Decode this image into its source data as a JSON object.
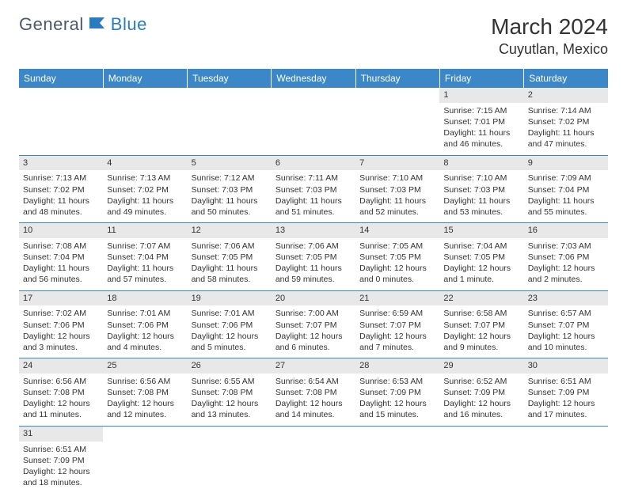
{
  "logo": {
    "part1": "General",
    "part2": "Blue"
  },
  "title": "March 2024",
  "location": "Cuyutlan, Mexico",
  "colors": {
    "header_bg": "#3b87c8",
    "header_text": "#ffffff",
    "row_border": "#3b87c8",
    "daynum_bg": "#e8e8e8",
    "text": "#333333",
    "logo_gray": "#4a5a6a",
    "logo_blue": "#2a7bbf"
  },
  "day_headers": [
    "Sunday",
    "Monday",
    "Tuesday",
    "Wednesday",
    "Thursday",
    "Friday",
    "Saturday"
  ],
  "weeks": [
    [
      null,
      null,
      null,
      null,
      null,
      {
        "n": "1",
        "sr": "Sunrise: 7:15 AM",
        "ss": "Sunset: 7:01 PM",
        "dl": "Daylight: 11 hours and 46 minutes."
      },
      {
        "n": "2",
        "sr": "Sunrise: 7:14 AM",
        "ss": "Sunset: 7:02 PM",
        "dl": "Daylight: 11 hours and 47 minutes."
      }
    ],
    [
      {
        "n": "3",
        "sr": "Sunrise: 7:13 AM",
        "ss": "Sunset: 7:02 PM",
        "dl": "Daylight: 11 hours and 48 minutes."
      },
      {
        "n": "4",
        "sr": "Sunrise: 7:13 AM",
        "ss": "Sunset: 7:02 PM",
        "dl": "Daylight: 11 hours and 49 minutes."
      },
      {
        "n": "5",
        "sr": "Sunrise: 7:12 AM",
        "ss": "Sunset: 7:03 PM",
        "dl": "Daylight: 11 hours and 50 minutes."
      },
      {
        "n": "6",
        "sr": "Sunrise: 7:11 AM",
        "ss": "Sunset: 7:03 PM",
        "dl": "Daylight: 11 hours and 51 minutes."
      },
      {
        "n": "7",
        "sr": "Sunrise: 7:10 AM",
        "ss": "Sunset: 7:03 PM",
        "dl": "Daylight: 11 hours and 52 minutes."
      },
      {
        "n": "8",
        "sr": "Sunrise: 7:10 AM",
        "ss": "Sunset: 7:03 PM",
        "dl": "Daylight: 11 hours and 53 minutes."
      },
      {
        "n": "9",
        "sr": "Sunrise: 7:09 AM",
        "ss": "Sunset: 7:04 PM",
        "dl": "Daylight: 11 hours and 55 minutes."
      }
    ],
    [
      {
        "n": "10",
        "sr": "Sunrise: 7:08 AM",
        "ss": "Sunset: 7:04 PM",
        "dl": "Daylight: 11 hours and 56 minutes."
      },
      {
        "n": "11",
        "sr": "Sunrise: 7:07 AM",
        "ss": "Sunset: 7:04 PM",
        "dl": "Daylight: 11 hours and 57 minutes."
      },
      {
        "n": "12",
        "sr": "Sunrise: 7:06 AM",
        "ss": "Sunset: 7:05 PM",
        "dl": "Daylight: 11 hours and 58 minutes."
      },
      {
        "n": "13",
        "sr": "Sunrise: 7:06 AM",
        "ss": "Sunset: 7:05 PM",
        "dl": "Daylight: 11 hours and 59 minutes."
      },
      {
        "n": "14",
        "sr": "Sunrise: 7:05 AM",
        "ss": "Sunset: 7:05 PM",
        "dl": "Daylight: 12 hours and 0 minutes."
      },
      {
        "n": "15",
        "sr": "Sunrise: 7:04 AM",
        "ss": "Sunset: 7:05 PM",
        "dl": "Daylight: 12 hours and 1 minute."
      },
      {
        "n": "16",
        "sr": "Sunrise: 7:03 AM",
        "ss": "Sunset: 7:06 PM",
        "dl": "Daylight: 12 hours and 2 minutes."
      }
    ],
    [
      {
        "n": "17",
        "sr": "Sunrise: 7:02 AM",
        "ss": "Sunset: 7:06 PM",
        "dl": "Daylight: 12 hours and 3 minutes."
      },
      {
        "n": "18",
        "sr": "Sunrise: 7:01 AM",
        "ss": "Sunset: 7:06 PM",
        "dl": "Daylight: 12 hours and 4 minutes."
      },
      {
        "n": "19",
        "sr": "Sunrise: 7:01 AM",
        "ss": "Sunset: 7:06 PM",
        "dl": "Daylight: 12 hours and 5 minutes."
      },
      {
        "n": "20",
        "sr": "Sunrise: 7:00 AM",
        "ss": "Sunset: 7:07 PM",
        "dl": "Daylight: 12 hours and 6 minutes."
      },
      {
        "n": "21",
        "sr": "Sunrise: 6:59 AM",
        "ss": "Sunset: 7:07 PM",
        "dl": "Daylight: 12 hours and 7 minutes."
      },
      {
        "n": "22",
        "sr": "Sunrise: 6:58 AM",
        "ss": "Sunset: 7:07 PM",
        "dl": "Daylight: 12 hours and 9 minutes."
      },
      {
        "n": "23",
        "sr": "Sunrise: 6:57 AM",
        "ss": "Sunset: 7:07 PM",
        "dl": "Daylight: 12 hours and 10 minutes."
      }
    ],
    [
      {
        "n": "24",
        "sr": "Sunrise: 6:56 AM",
        "ss": "Sunset: 7:08 PM",
        "dl": "Daylight: 12 hours and 11 minutes."
      },
      {
        "n": "25",
        "sr": "Sunrise: 6:56 AM",
        "ss": "Sunset: 7:08 PM",
        "dl": "Daylight: 12 hours and 12 minutes."
      },
      {
        "n": "26",
        "sr": "Sunrise: 6:55 AM",
        "ss": "Sunset: 7:08 PM",
        "dl": "Daylight: 12 hours and 13 minutes."
      },
      {
        "n": "27",
        "sr": "Sunrise: 6:54 AM",
        "ss": "Sunset: 7:08 PM",
        "dl": "Daylight: 12 hours and 14 minutes."
      },
      {
        "n": "28",
        "sr": "Sunrise: 6:53 AM",
        "ss": "Sunset: 7:09 PM",
        "dl": "Daylight: 12 hours and 15 minutes."
      },
      {
        "n": "29",
        "sr": "Sunrise: 6:52 AM",
        "ss": "Sunset: 7:09 PM",
        "dl": "Daylight: 12 hours and 16 minutes."
      },
      {
        "n": "30",
        "sr": "Sunrise: 6:51 AM",
        "ss": "Sunset: 7:09 PM",
        "dl": "Daylight: 12 hours and 17 minutes."
      }
    ],
    [
      {
        "n": "31",
        "sr": "Sunrise: 6:51 AM",
        "ss": "Sunset: 7:09 PM",
        "dl": "Daylight: 12 hours and 18 minutes."
      },
      null,
      null,
      null,
      null,
      null,
      null
    ]
  ]
}
